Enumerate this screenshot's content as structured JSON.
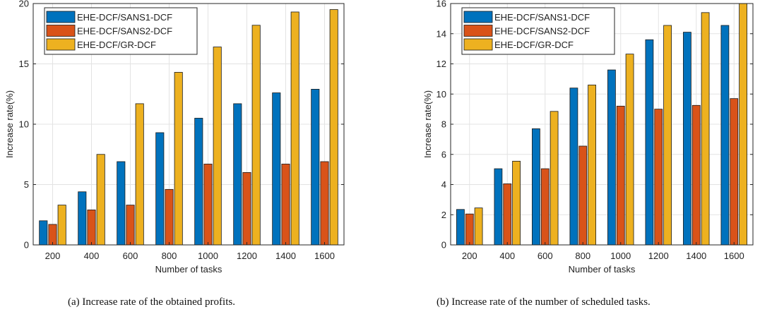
{
  "chart_data": [
    {
      "type": "bar",
      "xlabel": "Number of tasks",
      "ylabel": "Increase rate(%)",
      "ylim": [
        0,
        20
      ],
      "yticks": [
        0,
        5,
        10,
        15,
        20
      ],
      "categories": [
        "200",
        "400",
        "600",
        "800",
        "1000",
        "1200",
        "1400",
        "1600"
      ],
      "legend_position": "top-left",
      "grid": true,
      "series": [
        {
          "name": "EHE-DCF/SANS1-DCF",
          "color": "#0072BD",
          "values": [
            2.0,
            4.4,
            6.9,
            9.3,
            10.5,
            11.7,
            12.6,
            12.9
          ]
        },
        {
          "name": "EHE-DCF/SANS2-DCF",
          "color": "#D95319",
          "values": [
            1.7,
            2.9,
            3.3,
            4.6,
            6.7,
            6.0,
            6.7,
            6.9
          ]
        },
        {
          "name": "EHE-DCF/GR-DCF",
          "color": "#EDB120",
          "values": [
            3.3,
            7.5,
            11.7,
            14.3,
            16.4,
            18.2,
            19.3,
            19.5
          ]
        }
      ],
      "caption": "(a) Increase rate of the obtained profits."
    },
    {
      "type": "bar",
      "xlabel": "Number of tasks",
      "ylabel": "Increase rate(%)",
      "ylim": [
        0,
        16
      ],
      "yticks": [
        0,
        2,
        4,
        6,
        8,
        10,
        12,
        14,
        16
      ],
      "categories": [
        "200",
        "400",
        "600",
        "800",
        "1000",
        "1200",
        "1400",
        "1600"
      ],
      "legend_position": "top-left",
      "grid": true,
      "series": [
        {
          "name": "EHE-DCF/SANS1-DCF",
          "color": "#0072BD",
          "values": [
            2.35,
            5.05,
            7.7,
            10.4,
            11.6,
            13.6,
            14.1,
            14.55
          ]
        },
        {
          "name": "EHE-DCF/SANS2-DCF",
          "color": "#D95319",
          "values": [
            2.05,
            4.05,
            5.05,
            6.55,
            9.2,
            9.0,
            9.25,
            9.7
          ]
        },
        {
          "name": "EHE-DCF/GR-DCF",
          "color": "#EDB120",
          "values": [
            2.45,
            5.55,
            8.85,
            10.6,
            12.65,
            14.55,
            15.4,
            16.0
          ]
        }
      ],
      "caption": "(b) Increase rate of the number of scheduled tasks."
    }
  ]
}
